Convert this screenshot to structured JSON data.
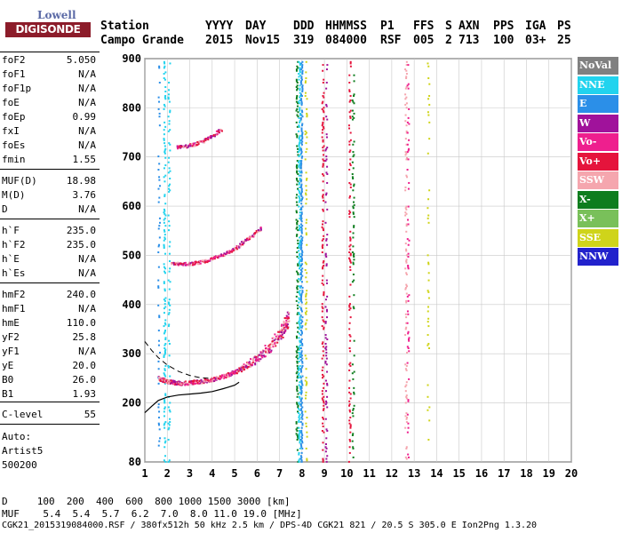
{
  "logo": {
    "top": "Lowell",
    "bottom": "DIGISONDE"
  },
  "header": {
    "labels": [
      "Station",
      "YYYY",
      "DAY",
      "DDD",
      "HHMMSS",
      "P1",
      "FFS",
      "S",
      "AXN",
      "PPS",
      "IGA",
      "PS"
    ],
    "values": [
      "Campo Grande",
      "2015",
      "Nov15",
      "319",
      "084000",
      "RSF",
      "005",
      "2",
      "713",
      "100",
      "03+",
      "25"
    ]
  },
  "params": [
    {
      "name": "foF2",
      "value": "5.050"
    },
    {
      "name": "foF1",
      "value": "N/A"
    },
    {
      "name": "foF1p",
      "value": "N/A"
    },
    {
      "name": "foE",
      "value": "N/A"
    },
    {
      "name": "foEp",
      "value": "0.99"
    },
    {
      "name": "fxI",
      "value": "N/A"
    },
    {
      "name": "foEs",
      "value": "N/A"
    },
    {
      "name": "fmin",
      "value": "1.55"
    },
    {
      "name": "MUF(D)",
      "value": "18.98"
    },
    {
      "name": "M(D)",
      "value": "3.76"
    },
    {
      "name": "D",
      "value": "N/A"
    },
    {
      "name": "h`F",
      "value": "235.0"
    },
    {
      "name": "h`F2",
      "value": "235.0"
    },
    {
      "name": "h`E",
      "value": "N/A"
    },
    {
      "name": "h`Es",
      "value": "N/A"
    },
    {
      "name": "hmF2",
      "value": "240.0"
    },
    {
      "name": "hmF1",
      "value": "N/A"
    },
    {
      "name": "hmE",
      "value": "110.0"
    },
    {
      "name": "yF2",
      "value": "25.8"
    },
    {
      "name": "yF1",
      "value": "N/A"
    },
    {
      "name": "yE",
      "value": "20.0"
    },
    {
      "name": "B0",
      "value": "26.0"
    },
    {
      "name": "B1",
      "value": "1.93"
    },
    {
      "name": "C-level",
      "value": "55"
    }
  ],
  "autoscale": {
    "line1": "Auto:",
    "line2": "Artist5",
    "line3": "500200"
  },
  "legend": [
    {
      "label": "NoVal",
      "color": "#808080"
    },
    {
      "label": "NNE",
      "color": "#22d3ee"
    },
    {
      "label": "E",
      "color": "#2b8fe8"
    },
    {
      "label": "W",
      "color": "#a0129b"
    },
    {
      "label": "Vo-",
      "color": "#ee1f8e"
    },
    {
      "label": "Vo+",
      "color": "#e5143c"
    },
    {
      "label": "SSW",
      "color": "#f5a6ae"
    },
    {
      "label": "X-",
      "color": "#0e7d1e"
    },
    {
      "label": "X+",
      "color": "#79c05a"
    },
    {
      "label": "SSE",
      "color": "#cfd41a"
    },
    {
      "label": "NNW",
      "color": "#2222cc"
    }
  ],
  "footer": {
    "d_row": "D     100  200  400  600  800 1000 1500 3000 [km]",
    "muf_row": "MUF    5.4  5.4  5.7  6.2  7.0  8.0 11.0 19.0 [MHz]",
    "file_row": "CGK21_2015319084000.RSF / 380fx512h 50 kHz 2.5 km / DPS-4D CGK21 821 / 20.5 S 305.0 E Ion2Png 1.3.20"
  },
  "chart_data": {
    "type": "scatter",
    "xlim": [
      1,
      20
    ],
    "ylim": [
      80,
      900
    ],
    "xticks": [
      1,
      2,
      3,
      4,
      5,
      6,
      7,
      8,
      9,
      10,
      11,
      12,
      13,
      14,
      15,
      16,
      17,
      18,
      19,
      20
    ],
    "yticks": [
      80,
      200,
      300,
      400,
      500,
      600,
      700,
      800,
      900
    ],
    "grid": true,
    "xlabel": "",
    "ylabel": "",
    "traces": [
      {
        "name": "F2 trace (O)",
        "color": "#e5143c",
        "x": [
          1.6,
          1.8,
          2.0,
          2.3,
          2.6,
          3.0,
          3.4,
          3.8,
          4.2,
          4.6,
          5.0,
          5.4,
          5.8,
          6.2,
          6.6,
          7.0,
          7.2,
          7.4
        ],
        "y": [
          250,
          246,
          243,
          241,
          240,
          241,
          243,
          246,
          250,
          256,
          263,
          272,
          283,
          297,
          314,
          335,
          352,
          372
        ]
      },
      {
        "name": "F2 echo 2-hop",
        "color": "#ee1f8e",
        "x": [
          2.2,
          2.6,
          3.0,
          3.4,
          3.8,
          4.2,
          4.6,
          5.0,
          5.4,
          5.8,
          6.2
        ],
        "y": [
          485,
          482,
          483,
          486,
          490,
          497,
          505,
          515,
          528,
          542,
          558
        ]
      },
      {
        "name": "F2 echo 3-hop",
        "color": "#a0129b",
        "x": [
          2.4,
          2.8,
          3.2,
          3.6,
          4.0,
          4.4
        ],
        "y": [
          720,
          722,
          726,
          733,
          743,
          757
        ]
      },
      {
        "name": "dashed model",
        "color": "#000000",
        "x": [
          1.0,
          1.3,
          1.6,
          2.0,
          2.5,
          3.0,
          3.5,
          4.0
        ],
        "y": [
          325,
          307,
          292,
          277,
          264,
          256,
          251,
          250
        ]
      },
      {
        "name": "profile",
        "color": "#000000",
        "x": [
          1.0,
          1.3,
          1.6,
          2.0,
          2.5,
          3.0,
          3.5,
          4.0,
          4.5,
          5.0,
          5.2
        ],
        "y": [
          180,
          193,
          205,
          212,
          216,
          218,
          220,
          223,
          229,
          236,
          242
        ]
      }
    ]
  }
}
